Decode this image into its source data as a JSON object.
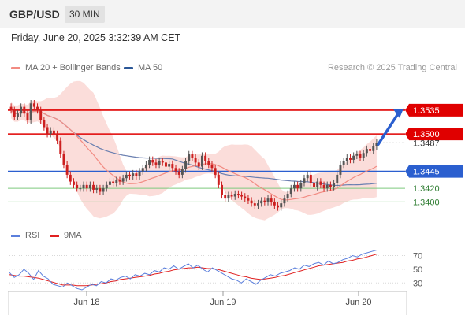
{
  "header": {
    "pair": "GBP/USD",
    "timeframe": "30 MIN"
  },
  "date_line": "Friday, June 20, 2025 3:32:39 AM CET",
  "legend": [
    {
      "label": "MA 20 + Bollinger Bands",
      "color": "#f28b82"
    },
    {
      "label": "MA 50",
      "color": "#2b5797"
    }
  ],
  "credit": "Research © 2025 Trading Central",
  "rsi_legend": [
    {
      "label": "RSI",
      "color": "#5b7fdc"
    },
    {
      "label": "9MA",
      "color": "#e02020"
    }
  ],
  "colors": {
    "resistance": "#e00000",
    "pivot": "#2b5fcf",
    "support": "#7dc97d",
    "arrow": "#2b5fcf",
    "bull": "#555555",
    "bear": "#cc1f1f",
    "band": "#fad2ce"
  },
  "chart_data": [
    {
      "type": "candlestick",
      "x_ticks": [
        "Jun 18",
        "Jun 19",
        "Jun 20"
      ],
      "price_levels": [
        {
          "value": 1.3535,
          "label": "1.3535",
          "kind": "resistance"
        },
        {
          "value": 1.35,
          "label": "1.3500",
          "kind": "resistance"
        },
        {
          "value": 1.3487,
          "label": "1.3487",
          "kind": "last"
        },
        {
          "value": 1.3445,
          "label": "1.3445",
          "kind": "pivot"
        },
        {
          "value": 1.342,
          "label": "1.3420",
          "kind": "support"
        },
        {
          "value": 1.34,
          "label": "1.3400",
          "kind": "support"
        }
      ],
      "close": [
        1.3535,
        1.3525,
        1.353,
        1.354,
        1.353,
        1.352,
        1.3545,
        1.354,
        1.3535,
        1.352,
        1.351,
        1.35,
        1.3505,
        1.35,
        1.349,
        1.347,
        1.3455,
        1.344,
        1.343,
        1.3425,
        1.342,
        1.342,
        1.3425,
        1.342,
        1.3425,
        1.3418,
        1.342,
        1.3415,
        1.342,
        1.3425,
        1.343,
        1.3428,
        1.3432,
        1.343,
        1.3435,
        1.344,
        1.3438,
        1.3442,
        1.3438,
        1.3445,
        1.345,
        1.3455,
        1.3462,
        1.3458,
        1.3455,
        1.346,
        1.3458,
        1.3452,
        1.3456,
        1.345,
        1.3445,
        1.344,
        1.3448,
        1.346,
        1.347,
        1.3465,
        1.3458,
        1.3452,
        1.3468,
        1.346,
        1.3455,
        1.345,
        1.344,
        1.3425,
        1.341,
        1.3405,
        1.341,
        1.3408,
        1.3412,
        1.341,
        1.3408,
        1.3405,
        1.3402,
        1.3398,
        1.3395,
        1.3398,
        1.3402,
        1.34,
        1.3405,
        1.34,
        1.3395,
        1.3392,
        1.3398,
        1.3405,
        1.3412,
        1.342,
        1.3425,
        1.342,
        1.3428,
        1.3435,
        1.344,
        1.3428,
        1.3422,
        1.343,
        1.3425,
        1.342,
        1.3425,
        1.3422,
        1.3428,
        1.344,
        1.3455,
        1.346,
        1.3465,
        1.3462,
        1.3468,
        1.347,
        1.3465,
        1.3472,
        1.3478,
        1.3475,
        1.3482,
        1.3487
      ],
      "series_names": [
        "MA 20 + Bollinger Bands",
        "MA 50"
      ]
    },
    {
      "type": "line",
      "panel": "RSI",
      "y_ticks": [
        70,
        50,
        30
      ],
      "series": [
        {
          "name": "RSI",
          "values": [
            45,
            38,
            42,
            50,
            44,
            35,
            48,
            40,
            36,
            28,
            26,
            24,
            30,
            26,
            22,
            20,
            24,
            28,
            26,
            32,
            30,
            36,
            34,
            38,
            40,
            36,
            42,
            40,
            44,
            42,
            48,
            46,
            52,
            50,
            55,
            50,
            54,
            58,
            52,
            56,
            50,
            46,
            52,
            48,
            44,
            40,
            36,
            34,
            30,
            36,
            32,
            28,
            34,
            38,
            42,
            40,
            44,
            46,
            48,
            52,
            50,
            56,
            54,
            58,
            60,
            56,
            62,
            58,
            60,
            64,
            66,
            70,
            68,
            72,
            74,
            76,
            78
          ]
        },
        {
          "name": "9MA",
          "values": [
            42,
            41,
            40,
            40,
            39,
            38,
            37,
            35,
            33,
            31,
            29,
            27,
            27,
            27,
            26,
            26,
            26,
            27,
            28,
            29,
            30,
            32,
            33,
            35,
            36,
            37,
            38,
            39,
            40,
            41,
            43,
            44,
            46,
            47,
            49,
            50,
            51,
            52,
            52,
            53,
            52,
            51,
            51,
            50,
            48,
            46,
            44,
            42,
            40,
            39,
            37,
            36,
            35,
            36,
            37,
            38,
            40,
            41,
            43,
            45,
            47,
            49,
            51,
            53,
            55,
            56,
            57,
            58,
            59,
            60,
            62,
            63,
            65,
            66,
            68,
            70,
            72
          ]
        }
      ]
    }
  ]
}
